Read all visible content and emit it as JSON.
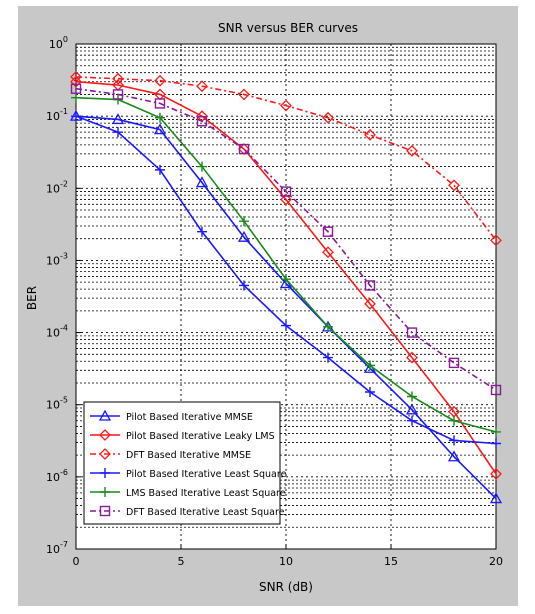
{
  "chart_data": {
    "type": "line",
    "title": "SNR versus BER curves",
    "xlabel": "SNR (dB)",
    "ylabel": "BER",
    "x": [
      0,
      2,
      4,
      6,
      8,
      10,
      12,
      14,
      16,
      18,
      20
    ],
    "xticks": [
      0,
      5,
      10,
      15,
      20
    ],
    "xtick_labels": [
      "0",
      "5",
      "10",
      "15",
      "20"
    ],
    "xlim": [
      0,
      20
    ],
    "ylim_log10": [
      -7,
      0
    ],
    "yticks_exp": [
      0,
      -1,
      -2,
      -3,
      -4,
      -5,
      -6,
      -7
    ],
    "ytick_base": "10",
    "yscale": "log",
    "grid": true,
    "legend_position": "bottom-left",
    "series": [
      {
        "name": "Pilot Based Iterative MMSE",
        "color": "#1a1aff",
        "marker": "triangle",
        "values": [
          0.1,
          0.09,
          0.065,
          0.012,
          0.0021,
          0.00048,
          0.00012,
          3.2e-05,
          8.5e-06,
          1.9e-06,
          5e-07
        ]
      },
      {
        "name": "Pilot Based Iterative Leaky LMS",
        "color": "#ff1a1a",
        "marker": "diamond",
        "values": [
          0.3,
          0.27,
          0.2,
          0.1,
          0.035,
          0.007,
          0.0013,
          0.00025,
          4.5e-05,
          8e-06,
          1.1e-06
        ]
      },
      {
        "name": "DFT Based Iterative MMSE",
        "color": "#ff1a1a",
        "marker": "diamond",
        "dashed": true,
        "values": [
          0.35,
          0.33,
          0.31,
          0.26,
          0.2,
          0.14,
          0.095,
          0.055,
          0.033,
          0.011,
          0.0019
        ]
      },
      {
        "name": "Pilot Based Iterative Least Square",
        "color": "#1a1aff",
        "marker": "plus",
        "values": [
          0.1,
          0.06,
          0.018,
          0.0025,
          0.00045,
          0.000125,
          4.5e-05,
          1.5e-05,
          6e-06,
          3.2e-06,
          2.9e-06
        ]
      },
      {
        "name": "LMS Based Iterative Least Square",
        "color": "#1a8a1a",
        "marker": "plus",
        "values": [
          0.18,
          0.17,
          0.095,
          0.02,
          0.0035,
          0.00055,
          0.00012,
          3.5e-05,
          1.3e-05,
          6e-06,
          4.2e-06
        ]
      },
      {
        "name": "DFT Based Iterative Least Square",
        "color": "#8a1a9a",
        "marker": "square",
        "dashed": true,
        "values": [
          0.24,
          0.2,
          0.15,
          0.085,
          0.035,
          0.009,
          0.0025,
          0.00045,
          0.0001,
          3.8e-05,
          1.6e-05
        ]
      }
    ]
  }
}
